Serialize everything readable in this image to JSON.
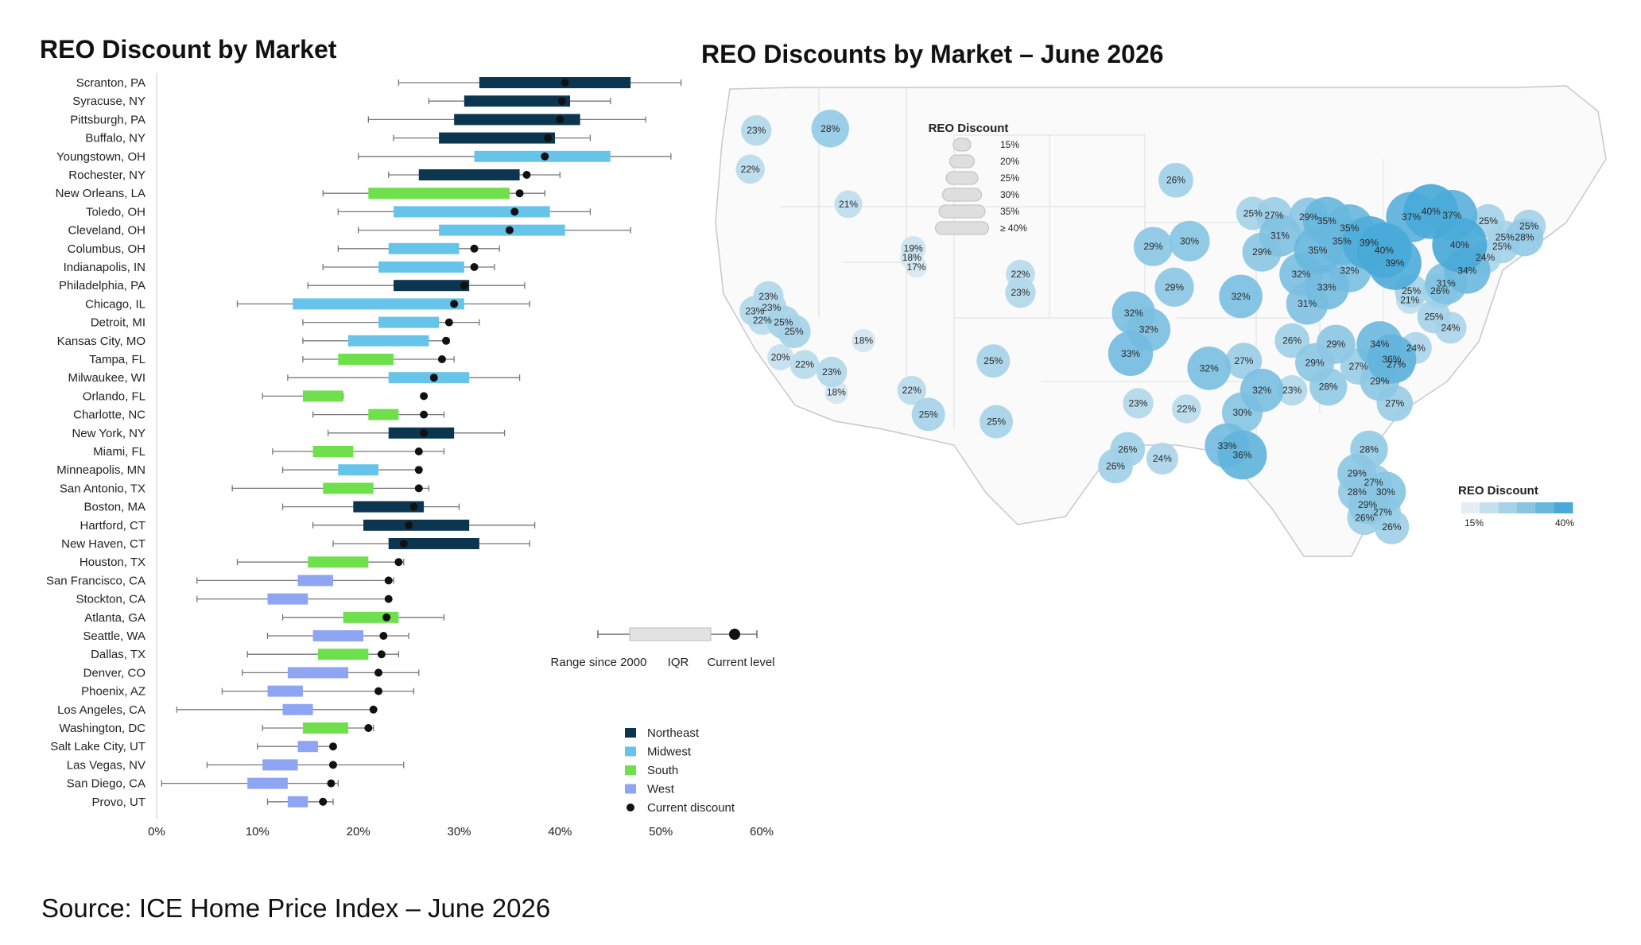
{
  "page": {
    "left_title": "REO Discount by Market",
    "right_title": "REO Discounts by Market – June 2026",
    "source": "Source: ICE Home Price Index – June 2026"
  },
  "colors": {
    "Northeast": "#0c3650",
    "Midwest": "#66c4ea",
    "South": "#6ee04c",
    "West": "#8da5f2",
    "current": "#111111",
    "range_line": "#777777",
    "map_bubble_low": "#e4eef3",
    "map_bubble_high": "#49a9d8",
    "map_border": "#c8c8c8"
  },
  "chart_data": [
    {
      "type": "boxplot",
      "title": "REO Discount by Market",
      "x_axis": {
        "min": 0,
        "max": 60,
        "ticks": [
          "0%",
          "10%",
          "20%",
          "30%",
          "40%",
          "50%",
          "60%"
        ],
        "unit": "%"
      },
      "legend": {
        "regions": [
          "Northeast",
          "Midwest",
          "South",
          "West"
        ],
        "current_label": "Current discount",
        "key_labels": [
          "Range since 2000",
          "IQR",
          "Current level"
        ]
      },
      "markets": [
        {
          "name": "Scranton, PA",
          "region": "Northeast",
          "min": 24,
          "q1": 32,
          "q3": 47,
          "max": 52,
          "current": 40.5
        },
        {
          "name": "Syracuse, NY",
          "region": "Northeast",
          "min": 27,
          "q1": 30.5,
          "q3": 41,
          "max": 45,
          "current": 40.2
        },
        {
          "name": "Pittsburgh, PA",
          "region": "Northeast",
          "min": 21,
          "q1": 29.5,
          "q3": 42,
          "max": 48.5,
          "current": 40
        },
        {
          "name": "Buffalo, NY",
          "region": "Northeast",
          "min": 23.5,
          "q1": 28,
          "q3": 39.5,
          "max": 43,
          "current": 38.8
        },
        {
          "name": "Youngstown, OH",
          "region": "Midwest",
          "min": 20,
          "q1": 31.5,
          "q3": 45,
          "max": 51,
          "current": 38.5
        },
        {
          "name": "Rochester, NY",
          "region": "Northeast",
          "min": 23,
          "q1": 26,
          "q3": 36,
          "max": 40,
          "current": 36.7
        },
        {
          "name": "New Orleans, LA",
          "region": "South",
          "min": 16.5,
          "q1": 21,
          "q3": 35,
          "max": 38.5,
          "current": 36
        },
        {
          "name": "Toledo, OH",
          "region": "Midwest",
          "min": 18,
          "q1": 23.5,
          "q3": 39,
          "max": 43,
          "current": 35.5
        },
        {
          "name": "Cleveland, OH",
          "region": "Midwest",
          "min": 20,
          "q1": 28,
          "q3": 40.5,
          "max": 47,
          "current": 35
        },
        {
          "name": "Columbus, OH",
          "region": "Midwest",
          "min": 18,
          "q1": 23,
          "q3": 30,
          "max": 34,
          "current": 31.5
        },
        {
          "name": "Indianapolis, IN",
          "region": "Midwest",
          "min": 16.5,
          "q1": 22,
          "q3": 30.5,
          "max": 33.5,
          "current": 31.5
        },
        {
          "name": "Philadelphia, PA",
          "region": "Northeast",
          "min": 15,
          "q1": 23.5,
          "q3": 31,
          "max": 36.5,
          "current": 30.5
        },
        {
          "name": "Chicago, IL",
          "region": "Midwest",
          "min": 8,
          "q1": 13.5,
          "q3": 30.5,
          "max": 37,
          "current": 29.5
        },
        {
          "name": "Detroit, MI",
          "region": "Midwest",
          "min": 14.5,
          "q1": 22,
          "q3": 28,
          "max": 32,
          "current": 29
        },
        {
          "name": "Kansas City, MO",
          "region": "Midwest",
          "min": 14.5,
          "q1": 19,
          "q3": 27,
          "max": 29,
          "current": 28.7
        },
        {
          "name": "Tampa, FL",
          "region": "South",
          "min": 14.5,
          "q1": 18,
          "q3": 23.5,
          "max": 29.5,
          "current": 28.3
        },
        {
          "name": "Milwaukee, WI",
          "region": "Midwest",
          "min": 13,
          "q1": 23,
          "q3": 31,
          "max": 36,
          "current": 27.5
        },
        {
          "name": "Orlando, FL",
          "region": "South",
          "min": 10.5,
          "q1": 14.5,
          "q3": 18.5,
          "max": 18.5,
          "current": 26.5
        },
        {
          "name": "Charlotte, NC",
          "region": "South",
          "min": 15.5,
          "q1": 21,
          "q3": 24,
          "max": 28.5,
          "current": 26.5
        },
        {
          "name": "New York, NY",
          "region": "Northeast",
          "min": 17,
          "q1": 23,
          "q3": 29.5,
          "max": 34.5,
          "current": 26.5
        },
        {
          "name": "Miami, FL",
          "region": "South",
          "min": 11.5,
          "q1": 15.5,
          "q3": 19.5,
          "max": 28.5,
          "current": 26
        },
        {
          "name": "Minneapolis, MN",
          "region": "Midwest",
          "min": 12.5,
          "q1": 18,
          "q3": 22,
          "max": 26,
          "current": 26
        },
        {
          "name": "San Antonio, TX",
          "region": "South",
          "min": 7.5,
          "q1": 16.5,
          "q3": 21.5,
          "max": 27,
          "current": 26
        },
        {
          "name": "Boston, MA",
          "region": "Northeast",
          "min": 12.5,
          "q1": 19.5,
          "q3": 26.5,
          "max": 30,
          "current": 25.5
        },
        {
          "name": "Hartford, CT",
          "region": "Northeast",
          "min": 15.5,
          "q1": 20.5,
          "q3": 31,
          "max": 37.5,
          "current": 25
        },
        {
          "name": "New Haven, CT",
          "region": "Northeast",
          "min": 17.5,
          "q1": 23,
          "q3": 32,
          "max": 37,
          "current": 24.5
        },
        {
          "name": "Houston, TX",
          "region": "South",
          "min": 8,
          "q1": 15,
          "q3": 21,
          "max": 24.5,
          "current": 24
        },
        {
          "name": "San Francisco, CA",
          "region": "West",
          "min": 4,
          "q1": 14,
          "q3": 17.5,
          "max": 23.5,
          "current": 23
        },
        {
          "name": "Stockton, CA",
          "region": "West",
          "min": 4,
          "q1": 11,
          "q3": 15,
          "max": 23,
          "current": 23
        },
        {
          "name": "Atlanta, GA",
          "region": "South",
          "min": 12.5,
          "q1": 18.5,
          "q3": 24,
          "max": 28.5,
          "current": 22.8
        },
        {
          "name": "Seattle, WA",
          "region": "West",
          "min": 11,
          "q1": 15.5,
          "q3": 20.5,
          "max": 25,
          "current": 22.5
        },
        {
          "name": "Dallas, TX",
          "region": "South",
          "min": 9,
          "q1": 16,
          "q3": 21,
          "max": 24,
          "current": 22.3
        },
        {
          "name": "Denver, CO",
          "region": "West",
          "min": 8.5,
          "q1": 13,
          "q3": 19,
          "max": 26,
          "current": 22
        },
        {
          "name": "Phoenix, AZ",
          "region": "West",
          "min": 6.5,
          "q1": 11,
          "q3": 14.5,
          "max": 25.5,
          "current": 22
        },
        {
          "name": "Los Angeles, CA",
          "region": "West",
          "min": 2,
          "q1": 12.5,
          "q3": 15.5,
          "max": 21.5,
          "current": 21.5
        },
        {
          "name": "Washington, DC",
          "region": "South",
          "min": 10.5,
          "q1": 14.5,
          "q3": 19,
          "max": 21.5,
          "current": 21
        },
        {
          "name": "Salt Lake City, UT",
          "region": "West",
          "min": 10,
          "q1": 14,
          "q3": 16,
          "max": 17.5,
          "current": 17.5
        },
        {
          "name": "Las Vegas, NV",
          "region": "West",
          "min": 5,
          "q1": 10.5,
          "q3": 14,
          "max": 24.5,
          "current": 17.5
        },
        {
          "name": "San Diego, CA",
          "region": "West",
          "min": 0.5,
          "q1": 9,
          "q3": 13,
          "max": 18,
          "current": 17.3
        },
        {
          "name": "Provo, UT",
          "region": "West",
          "min": 11,
          "q1": 13,
          "q3": 15,
          "max": 17.5,
          "current": 16.5
        }
      ]
    },
    {
      "type": "bubble-map",
      "title": "REO Discounts by Market – June 2026",
      "size_legend": {
        "title": "REO Discount",
        "labels": [
          "15%",
          "20%",
          "25%",
          "30%",
          "35%",
          "≥ 40%"
        ]
      },
      "color_legend": {
        "title": "REO Discount",
        "min_label": "15%",
        "max_label": "40%",
        "min": 15,
        "max": 40
      },
      "points": [
        {
          "lon": -122.3,
          "lat": 47.6,
          "value": 23
        },
        {
          "lon": -117.4,
          "lat": 47.7,
          "value": 28
        },
        {
          "lon": -122.7,
          "lat": 45.5,
          "value": 22
        },
        {
          "lon": -116.2,
          "lat": 43.6,
          "value": 21
        },
        {
          "lon": -111.9,
          "lat": 41.2,
          "value": 19
        },
        {
          "lon": -112.0,
          "lat": 40.7,
          "value": 18
        },
        {
          "lon": -111.7,
          "lat": 40.2,
          "value": 17
        },
        {
          "lon": -104.8,
          "lat": 39.8,
          "value": 22
        },
        {
          "lon": -104.8,
          "lat": 38.8,
          "value": 23
        },
        {
          "lon": -121.5,
          "lat": 38.6,
          "value": 23
        },
        {
          "lon": -122.4,
          "lat": 37.8,
          "value": 23
        },
        {
          "lon": -121.3,
          "lat": 38.0,
          "value": 23
        },
        {
          "lon": -121.9,
          "lat": 37.3,
          "value": 22
        },
        {
          "lon": -120.5,
          "lat": 37.2,
          "value": 25
        },
        {
          "lon": -119.8,
          "lat": 36.7,
          "value": 25
        },
        {
          "lon": -115.2,
          "lat": 36.2,
          "value": 18
        },
        {
          "lon": -120.7,
          "lat": 35.3,
          "value": 20
        },
        {
          "lon": -119.1,
          "lat": 34.9,
          "value": 22
        },
        {
          "lon": -117.3,
          "lat": 34.5,
          "value": 23
        },
        {
          "lon": -117.0,
          "lat": 33.4,
          "value": 18
        },
        {
          "lon": -112.0,
          "lat": 33.5,
          "value": 22
        },
        {
          "lon": -110.9,
          "lat": 32.2,
          "value": 25
        },
        {
          "lon": -106.6,
          "lat": 35.1,
          "value": 25
        },
        {
          "lon": -106.4,
          "lat": 31.8,
          "value": 25
        },
        {
          "lon": -94.5,
          "lat": 44.9,
          "value": 26
        },
        {
          "lon": -96.0,
          "lat": 41.3,
          "value": 29
        },
        {
          "lon": -93.6,
          "lat": 41.6,
          "value": 30
        },
        {
          "lon": -94.6,
          "lat": 39.1,
          "value": 29
        },
        {
          "lon": -97.3,
          "lat": 37.7,
          "value": 32
        },
        {
          "lon": -96.3,
          "lat": 36.8,
          "value": 32
        },
        {
          "lon": -97.5,
          "lat": 35.5,
          "value": 33
        },
        {
          "lon": -92.3,
          "lat": 34.7,
          "value": 32
        },
        {
          "lon": -90.2,
          "lat": 38.6,
          "value": 32
        },
        {
          "lon": -90.0,
          "lat": 35.1,
          "value": 27
        },
        {
          "lon": -89.4,
          "lat": 43.1,
          "value": 25
        },
        {
          "lon": -88.0,
          "lat": 43.0,
          "value": 27
        },
        {
          "lon": -87.6,
          "lat": 41.9,
          "value": 31
        },
        {
          "lon": -88.8,
          "lat": 41.0,
          "value": 29
        },
        {
          "lon": -85.7,
          "lat": 42.9,
          "value": 29
        },
        {
          "lon": -84.5,
          "lat": 42.7,
          "value": 35
        },
        {
          "lon": -83.0,
          "lat": 42.3,
          "value": 35
        },
        {
          "lon": -86.2,
          "lat": 39.8,
          "value": 32
        },
        {
          "lon": -85.1,
          "lat": 41.1,
          "value": 35
        },
        {
          "lon": -84.5,
          "lat": 39.1,
          "value": 33
        },
        {
          "lon": -83.5,
          "lat": 41.6,
          "value": 35
        },
        {
          "lon": -83.0,
          "lat": 40.0,
          "value": 32
        },
        {
          "lon": -85.8,
          "lat": 38.2,
          "value": 31
        },
        {
          "lon": -81.7,
          "lat": 41.5,
          "value": 39
        },
        {
          "lon": -80.7,
          "lat": 41.1,
          "value": 40
        },
        {
          "lon": -80.0,
          "lat": 40.4,
          "value": 39
        },
        {
          "lon": -78.9,
          "lat": 42.9,
          "value": 37
        },
        {
          "lon": -77.6,
          "lat": 43.2,
          "value": 40
        },
        {
          "lon": -76.2,
          "lat": 43.0,
          "value": 37
        },
        {
          "lon": -75.7,
          "lat": 41.4,
          "value": 40
        },
        {
          "lon": -73.8,
          "lat": 42.7,
          "value": 25
        },
        {
          "lon": -72.7,
          "lat": 41.8,
          "value": 25
        },
        {
          "lon": -71.4,
          "lat": 41.8,
          "value": 28
        },
        {
          "lon": -71.1,
          "lat": 42.4,
          "value": 25
        },
        {
          "lon": -72.9,
          "lat": 41.3,
          "value": 25
        },
        {
          "lon": -74.0,
          "lat": 40.7,
          "value": 24
        },
        {
          "lon": -75.2,
          "lat": 40.0,
          "value": 34
        },
        {
          "lon": -76.6,
          "lat": 39.3,
          "value": 31
        },
        {
          "lon": -77.0,
          "lat": 38.9,
          "value": 26
        },
        {
          "lon": -77.4,
          "lat": 37.5,
          "value": 25
        },
        {
          "lon": -76.3,
          "lat": 36.9,
          "value": 24
        },
        {
          "lon": -79.0,
          "lat": 38.4,
          "value": 21
        },
        {
          "lon": -78.9,
          "lat": 38.9,
          "value": 25
        },
        {
          "lon": -86.8,
          "lat": 36.2,
          "value": 26
        },
        {
          "lon": -85.3,
          "lat": 35.0,
          "value": 29
        },
        {
          "lon": -83.9,
          "lat": 36.0,
          "value": 29
        },
        {
          "lon": -81.0,
          "lat": 36.0,
          "value": 34
        },
        {
          "lon": -80.2,
          "lat": 35.2,
          "value": 36
        },
        {
          "lon": -78.6,
          "lat": 35.8,
          "value": 24
        },
        {
          "lon": -79.9,
          "lat": 34.9,
          "value": 27
        },
        {
          "lon": -82.4,
          "lat": 34.8,
          "value": 27
        },
        {
          "lon": -81.0,
          "lat": 34.0,
          "value": 29
        },
        {
          "lon": -84.4,
          "lat": 33.7,
          "value": 28
        },
        {
          "lon": -80.0,
          "lat": 32.8,
          "value": 27
        },
        {
          "lon": -86.8,
          "lat": 33.5,
          "value": 23
        },
        {
          "lon": -88.8,
          "lat": 33.5,
          "value": 32
        },
        {
          "lon": -90.1,
          "lat": 32.3,
          "value": 30
        },
        {
          "lon": -90.1,
          "lat": 30.0,
          "value": 36
        },
        {
          "lon": -91.1,
          "lat": 30.5,
          "value": 33
        },
        {
          "lon": -93.8,
          "lat": 32.5,
          "value": 22
        },
        {
          "lon": -97.0,
          "lat": 32.8,
          "value": 23
        },
        {
          "lon": -97.7,
          "lat": 30.3,
          "value": 26
        },
        {
          "lon": -95.4,
          "lat": 29.8,
          "value": 24
        },
        {
          "lon": -98.5,
          "lat": 29.4,
          "value": 26
        },
        {
          "lon": -81.7,
          "lat": 30.3,
          "value": 28
        },
        {
          "lon": -82.5,
          "lat": 29.0,
          "value": 29
        },
        {
          "lon": -81.4,
          "lat": 28.5,
          "value": 27
        },
        {
          "lon": -80.6,
          "lat": 28.0,
          "value": 30
        },
        {
          "lon": -82.5,
          "lat": 28.0,
          "value": 28
        },
        {
          "lon": -81.8,
          "lat": 27.3,
          "value": 29
        },
        {
          "lon": -82.0,
          "lat": 26.6,
          "value": 26
        },
        {
          "lon": -80.8,
          "lat": 26.9,
          "value": 27
        },
        {
          "lon": -80.2,
          "lat": 26.1,
          "value": 26
        }
      ]
    }
  ]
}
